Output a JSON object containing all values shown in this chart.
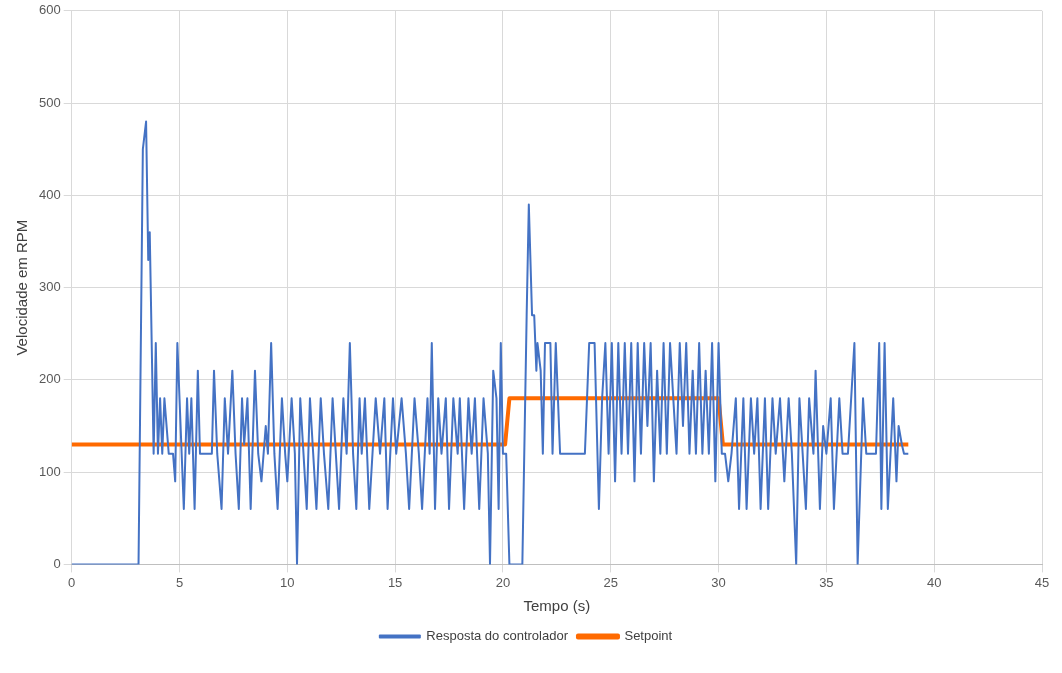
{
  "chart_data": {
    "type": "line",
    "xlabel": "Tempo (s)",
    "ylabel": "Velocidade em RPM",
    "xlim": [
      0,
      45
    ],
    "xticks": [
      0,
      5,
      10,
      15,
      20,
      25,
      30,
      35,
      40,
      45
    ],
    "ylim": [
      0,
      600
    ],
    "yticks": [
      0,
      100,
      200,
      300,
      400,
      500,
      600
    ],
    "grid": true,
    "legend": "bottom",
    "marker": "none",
    "line_style": "solid",
    "series": [
      {
        "name": "Resposta do controlador",
        "color": "#4472c4",
        "x": [
          0,
          3.1,
          3.3,
          3.45,
          3.55,
          3.62,
          3.8,
          3.9,
          4.0,
          4.1,
          4.2,
          4.3,
          4.5,
          4.7,
          4.8,
          4.9,
          5.1,
          5.2,
          5.35,
          5.45,
          5.55,
          5.7,
          5.85,
          5.95,
          6.5,
          6.6,
          6.75,
          6.95,
          7.1,
          7.25,
          7.45,
          7.6,
          7.75,
          7.9,
          8.0,
          8.15,
          8.3,
          8.5,
          8.65,
          8.8,
          9.0,
          9.1,
          9.25,
          9.4,
          9.55,
          9.75,
          9.9,
          10.0,
          10.2,
          10.35,
          10.45,
          10.6,
          10.75,
          10.9,
          11.05,
          11.2,
          11.35,
          11.55,
          11.7,
          11.9,
          12.1,
          12.25,
          12.4,
          12.6,
          12.75,
          12.9,
          13.05,
          13.2,
          13.35,
          13.45,
          13.6,
          13.8,
          14.1,
          14.3,
          14.5,
          14.65,
          14.9,
          15.05,
          15.3,
          15.5,
          15.65,
          15.9,
          16.1,
          16.25,
          16.5,
          16.6,
          16.7,
          16.85,
          17.0,
          17.15,
          17.35,
          17.5,
          17.7,
          17.9,
          18.0,
          18.2,
          18.4,
          18.55,
          18.7,
          18.9,
          19.1,
          19.3,
          19.4,
          19.55,
          19.7,
          19.8,
          19.9,
          20.0,
          20.15,
          20.3,
          20.9,
          21.1,
          21.2,
          21.35,
          21.45,
          21.55,
          21.6,
          21.75,
          21.85,
          21.95,
          22.2,
          22.3,
          22.45,
          22.65,
          23.8,
          24.0,
          24.25,
          24.45,
          24.6,
          24.75,
          24.9,
          25.05,
          25.2,
          25.35,
          25.5,
          25.65,
          25.8,
          25.95,
          26.1,
          26.25,
          26.4,
          26.55,
          26.7,
          26.85,
          27.0,
          27.15,
          27.3,
          27.45,
          27.6,
          27.75,
          27.9,
          28.05,
          28.2,
          28.35,
          28.5,
          28.65,
          28.8,
          28.95,
          29.1,
          29.25,
          29.4,
          29.55,
          29.7,
          29.85,
          30.0,
          30.15,
          30.3,
          30.45,
          30.6,
          30.8,
          30.95,
          31.15,
          31.3,
          31.5,
          31.65,
          31.8,
          31.95,
          32.15,
          32.3,
          32.5,
          32.65,
          32.85,
          33.05,
          33.25,
          33.4,
          33.6,
          33.75,
          33.9,
          34.05,
          34.2,
          34.4,
          34.5,
          34.7,
          34.85,
          35.0,
          35.2,
          35.35,
          35.6,
          35.75,
          36.0,
          36.3,
          36.45,
          36.7,
          36.85,
          37.3,
          37.45,
          37.55,
          37.7,
          37.85,
          38.1,
          38.25,
          38.35,
          38.5,
          38.6,
          38.8
        ],
        "values": [
          0,
          0,
          450,
          480,
          330,
          360,
          120,
          240,
          120,
          180,
          120,
          180,
          120,
          120,
          90,
          240,
          120,
          60,
          180,
          120,
          180,
          60,
          210,
          120,
          120,
          210,
          120,
          60,
          180,
          120,
          210,
          120,
          60,
          180,
          130,
          180,
          60,
          210,
          120,
          90,
          150,
          120,
          240,
          120,
          60,
          180,
          120,
          90,
          180,
          120,
          0,
          180,
          120,
          60,
          180,
          120,
          60,
          180,
          120,
          60,
          180,
          120,
          60,
          180,
          120,
          240,
          120,
          60,
          180,
          120,
          180,
          60,
          180,
          120,
          180,
          60,
          180,
          120,
          180,
          120,
          60,
          180,
          120,
          60,
          180,
          120,
          240,
          60,
          180,
          120,
          180,
          60,
          180,
          120,
          180,
          60,
          180,
          120,
          180,
          60,
          180,
          120,
          0,
          210,
          180,
          60,
          240,
          120,
          120,
          0,
          0,
          270,
          390,
          270,
          270,
          210,
          240,
          210,
          120,
          240,
          240,
          120,
          240,
          120,
          120,
          240,
          240,
          60,
          180,
          240,
          120,
          240,
          90,
          240,
          120,
          240,
          120,
          240,
          90,
          240,
          120,
          240,
          150,
          240,
          90,
          210,
          120,
          240,
          120,
          240,
          180,
          120,
          240,
          150,
          240,
          120,
          210,
          120,
          240,
          120,
          210,
          120,
          240,
          90,
          240,
          120,
          120,
          90,
          120,
          180,
          60,
          180,
          60,
          180,
          120,
          180,
          60,
          180,
          60,
          180,
          120,
          180,
          90,
          180,
          120,
          0,
          180,
          120,
          60,
          180,
          120,
          210,
          60,
          150,
          120,
          180,
          60,
          180,
          120,
          120,
          240,
          0,
          180,
          120,
          120,
          240,
          60,
          240,
          60,
          180,
          90,
          150,
          130,
          120,
          120
        ]
      },
      {
        "name": "Setpoint",
        "color": "#ff6a00",
        "x": [
          0,
          20.1,
          20.3,
          30.0,
          30.2,
          38.8
        ],
        "values": [
          130,
          130,
          180,
          180,
          130,
          130
        ]
      }
    ]
  }
}
